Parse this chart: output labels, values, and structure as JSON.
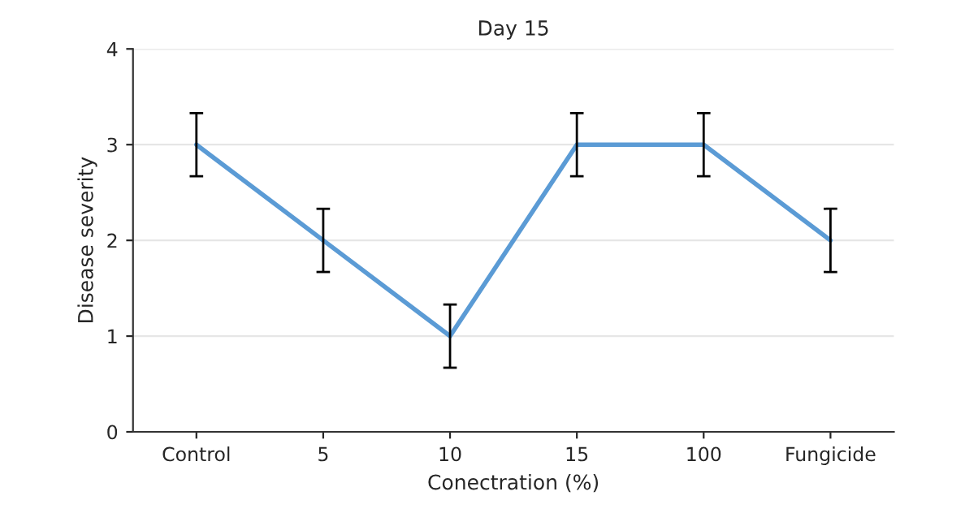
{
  "chart_data": {
    "type": "line",
    "title": "Day 15",
    "xlabel": "Conectration (%)",
    "ylabel": "Disease severity",
    "categories": [
      "Control",
      "5",
      "10",
      "15",
      "100",
      "Fungicide"
    ],
    "series": [
      {
        "color": "#5b9bd5",
        "values": [
          3,
          2,
          1,
          3,
          3,
          2
        ],
        "errors": [
          0.33,
          0.33,
          0.33,
          0.33,
          0.33,
          0.33
        ]
      }
    ],
    "ylim": [
      0,
      4
    ],
    "yticks": [
      0,
      1,
      2,
      3,
      4
    ],
    "grid": "y",
    "marker": "none",
    "line_style": "solid"
  }
}
